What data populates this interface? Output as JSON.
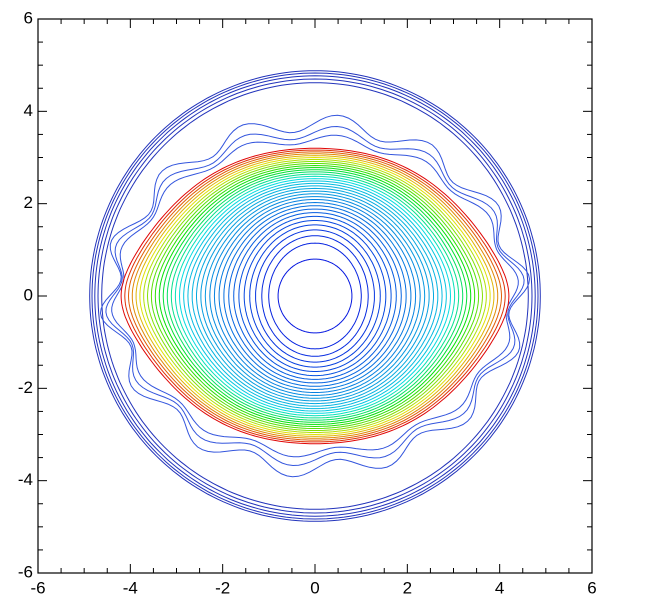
{
  "chart_data": {
    "type": "contour",
    "xlim": [
      -6,
      6
    ],
    "ylim": [
      -6,
      6
    ],
    "xticks": [
      -6,
      -4,
      -2,
      0,
      2,
      4,
      6
    ],
    "yticks": [
      -6,
      -4,
      -2,
      0,
      2,
      4,
      6
    ]
  }
}
